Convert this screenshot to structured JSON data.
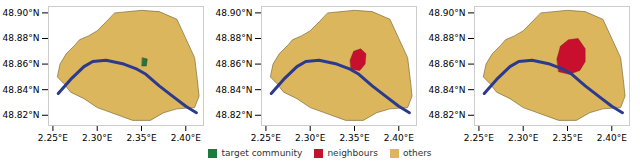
{
  "chart_data": [
    {
      "type": "map",
      "xlim": [
        2.245,
        2.42
      ],
      "ylim": [
        48.812,
        48.905
      ],
      "xticks": [
        {
          "value": 2.25,
          "label": "2.25°E"
        },
        {
          "value": 2.3,
          "label": "2.30°E"
        },
        {
          "value": 2.35,
          "label": "2.35°E"
        },
        {
          "value": 2.4,
          "label": "2.40°E"
        }
      ],
      "yticks": [
        {
          "value": 48.82,
          "label": "48.82°N"
        },
        {
          "value": 48.84,
          "label": "48.84°N"
        },
        {
          "value": 48.86,
          "label": "48.86°N"
        },
        {
          "value": 48.88,
          "label": "48.88°N"
        },
        {
          "value": 48.9,
          "label": "48.90°N"
        }
      ],
      "regions": [
        {
          "name": "target community",
          "polygon": [
            [
              2.3505,
              48.8585
            ],
            [
              2.3555,
              48.8585
            ],
            [
              2.3565,
              48.864
            ],
            [
              2.351,
              48.865
            ]
          ]
        }
      ]
    },
    {
      "type": "map",
      "xlim": [
        2.245,
        2.42
      ],
      "ylim": [
        48.812,
        48.905
      ],
      "xticks": [
        {
          "value": 2.25,
          "label": "2.25°E"
        },
        {
          "value": 2.3,
          "label": "2.30°E"
        },
        {
          "value": 2.35,
          "label": "2.35°E"
        },
        {
          "value": 2.4,
          "label": "2.40°E"
        }
      ],
      "yticks": [
        {
          "value": 48.82,
          "label": "48.82°N"
        },
        {
          "value": 48.84,
          "label": "48.84°N"
        },
        {
          "value": 48.86,
          "label": "48.86°N"
        },
        {
          "value": 48.88,
          "label": "48.88°N"
        },
        {
          "value": 48.9,
          "label": "48.90°N"
        }
      ],
      "regions": [
        {
          "name": "neighbours",
          "polygon": [
            [
              2.346,
              48.856
            ],
            [
              2.356,
              48.855
            ],
            [
              2.362,
              48.86
            ],
            [
              2.363,
              48.868
            ],
            [
              2.357,
              48.872
            ],
            [
              2.349,
              48.87
            ],
            [
              2.345,
              48.863
            ]
          ]
        }
      ]
    },
    {
      "type": "map",
      "xlim": [
        2.245,
        2.42
      ],
      "ylim": [
        48.812,
        48.905
      ],
      "xticks": [
        {
          "value": 2.25,
          "label": "2.25°E"
        },
        {
          "value": 2.3,
          "label": "2.30°E"
        },
        {
          "value": 2.35,
          "label": "2.35°E"
        },
        {
          "value": 2.4,
          "label": "2.40°E"
        }
      ],
      "yticks": [
        {
          "value": 48.82,
          "label": "48.82°N"
        },
        {
          "value": 48.84,
          "label": "48.84°N"
        },
        {
          "value": 48.86,
          "label": "48.86°N"
        },
        {
          "value": 48.88,
          "label": "48.88°N"
        },
        {
          "value": 48.9,
          "label": "48.90°N"
        }
      ],
      "regions": [
        {
          "name": "neighbours",
          "polygon": [
            [
              2.34,
              48.854
            ],
            [
              2.352,
              48.852
            ],
            [
              2.364,
              48.855
            ],
            [
              2.37,
              48.862
            ],
            [
              2.37,
              48.872
            ],
            [
              2.362,
              48.88
            ],
            [
              2.351,
              48.879
            ],
            [
              2.342,
              48.874
            ],
            [
              2.338,
              48.864
            ]
          ]
        }
      ]
    }
  ],
  "city": {
    "color": "#dcb65c",
    "outline": [
      [
        2.32,
        48.9
      ],
      [
        2.35,
        48.902
      ],
      [
        2.37,
        48.901
      ],
      [
        2.39,
        48.895
      ],
      [
        2.4,
        48.88
      ],
      [
        2.41,
        48.865
      ],
      [
        2.413,
        48.848
      ],
      [
        2.415,
        48.835
      ],
      [
        2.41,
        48.826
      ],
      [
        2.39,
        48.825
      ],
      [
        2.375,
        48.822
      ],
      [
        2.36,
        48.816
      ],
      [
        2.34,
        48.816
      ],
      [
        2.32,
        48.821
      ],
      [
        2.3,
        48.826
      ],
      [
        2.285,
        48.833
      ],
      [
        2.27,
        48.838
      ],
      [
        2.262,
        48.845
      ],
      [
        2.255,
        48.85
      ],
      [
        2.258,
        48.86
      ],
      [
        2.265,
        48.868
      ],
      [
        2.275,
        48.875
      ],
      [
        2.28,
        48.879
      ],
      [
        2.29,
        48.882
      ],
      [
        2.3,
        48.886
      ],
      [
        2.31,
        48.893
      ]
    ],
    "river_color": "#2b3a8f",
    "river": [
      [
        2.256,
        48.837
      ],
      [
        2.27,
        48.848
      ],
      [
        2.285,
        48.858
      ],
      [
        2.295,
        48.862
      ],
      [
        2.31,
        48.863
      ],
      [
        2.33,
        48.86
      ],
      [
        2.345,
        48.856
      ],
      [
        2.355,
        48.852
      ],
      [
        2.37,
        48.843
      ],
      [
        2.385,
        48.835
      ],
      [
        2.4,
        48.827
      ],
      [
        2.412,
        48.822
      ]
    ]
  },
  "key": [
    {
      "name": "target community",
      "color": "#1b7a3e"
    },
    {
      "name": "neighbours",
      "color": "#c8102e"
    },
    {
      "name": "others",
      "color": "#dcb65c"
    }
  ]
}
